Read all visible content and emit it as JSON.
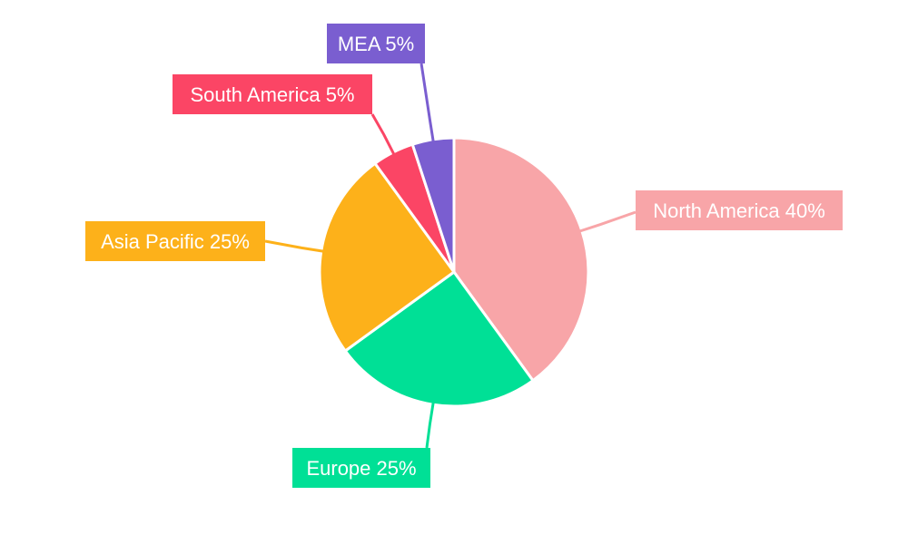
{
  "chart_data": {
    "type": "pie",
    "slices": [
      {
        "name": "North America",
        "value": 40,
        "label": "North America 40%",
        "color": "#F8A5A8"
      },
      {
        "name": "Europe",
        "value": 25,
        "label": "Europe 25%",
        "color": "#00E096"
      },
      {
        "name": "Asia Pacific",
        "value": 25,
        "label": "Asia Pacific 25%",
        "color": "#FDB11A"
      },
      {
        "name": "South America",
        "value": 5,
        "label": "South America 5%",
        "color": "#FB4565"
      },
      {
        "name": "MEA",
        "value": 5,
        "label": "MEA 5%",
        "color": "#7A5ED0"
      }
    ],
    "start_angle": "12 o'clock",
    "direction": "clockwise",
    "legend": "none",
    "labels": "outside with leader lines"
  }
}
